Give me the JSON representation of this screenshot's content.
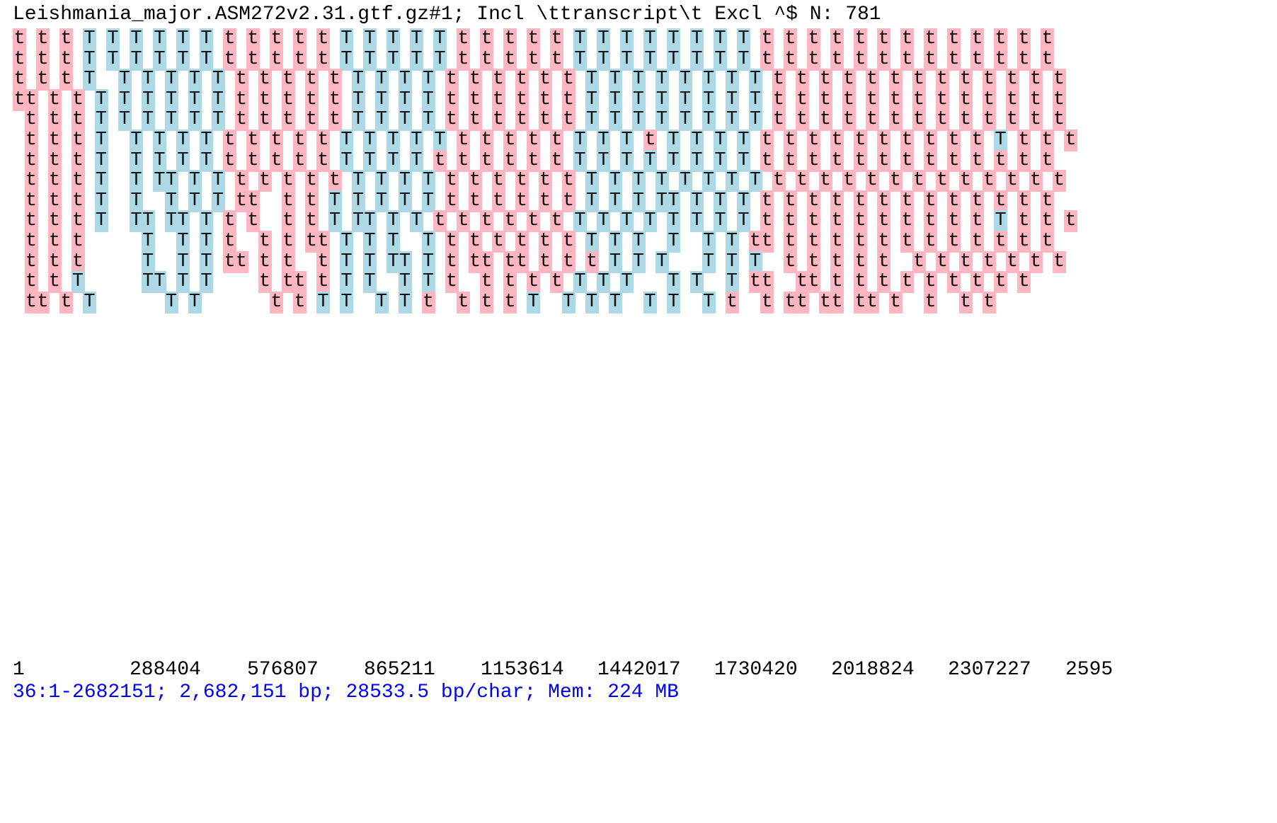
{
  "header": {
    "title": "Leishmania_major.ASM272v2.31.gtf.gz#1; Incl \\ttranscript\\t Excl ^$ N: 781"
  },
  "colors": {
    "forward_strand_bg": "#add8e6",
    "reverse_strand_bg": "#ffb6c1",
    "status_text": "#0000ff",
    "text": "#000000"
  },
  "glyphs": {
    "upper": "T",
    "lower": "t"
  },
  "track_rows": [
    "t t t T T T T T T t t t t t T T T T T t t t t t T T T T T T T T t t t t t t t t t t t t t",
    "t t t T T T T T T t t t t t T T T T T t t t t t T T T T T T T T t t t t t t t t t t t t t",
    "t t t T  T T T T T t t t t t T T T T t t t t t t T T T T T T T T t t t t t t t t t t t t t",
    "tt t t T T T T T T t t t t t T T T T t t t t t t T T T T T T T T t t t t t t t t t t t t t",
    " t t t T T T T T T t t t t t T T T T t t t t t t T T T T T T T T t t t t t t t t t t t t t",
    " t t t T  T T T T t t t t t T T T T T t t t t t T T T t T T T T t t t t t t t t t t T t t t",
    " t t t T  T T T T t t t t t T T T T t t t t t t T T T T T T T T t t t t t t t t t t t t t",
    " t t t T  T TT T T t t t t t T T T T t t t t t t T T T T T T T T t t t t t t t t t t t t t",
    " t t t T  T  T T T tt  t t T T T T T t t t t t t T T T TT T T T t t t t t t t t t t t t t",
    " t t t T  TT TT T t t  t t T TT T T t t t t t t T T T T T T T T t t t t t t t t t t T t t t",
    " t t t     T  T T t  t t tt T T T  T t t t t t t T T T  T  T T tt t t t t t t t t t t t t",
    " t t t     T  T T tt t t  t T T TT T t tt tt t t t T T T   T T T  t t t t t  t t t t t t t",
    " t t T     TT T T    t tt t T T  T T t  t t t t T T T   T T  T tt  tt t t t t t t t t t",
    " tt t T      T T      t t T T  T T t  t t t T  T T T  T T  T t  t tt tt tt t  t  t t"
  ],
  "ruler": {
    "labels": [
      "1",
      "288404",
      "576807",
      "865211",
      "1153614",
      "1442017",
      "1730420",
      "2018824",
      "2307227",
      "2595"
    ]
  },
  "status": {
    "text": "36:1-2682151; 2,682,151 bp; 28533.5 bp/char; Mem: 224 MB"
  }
}
